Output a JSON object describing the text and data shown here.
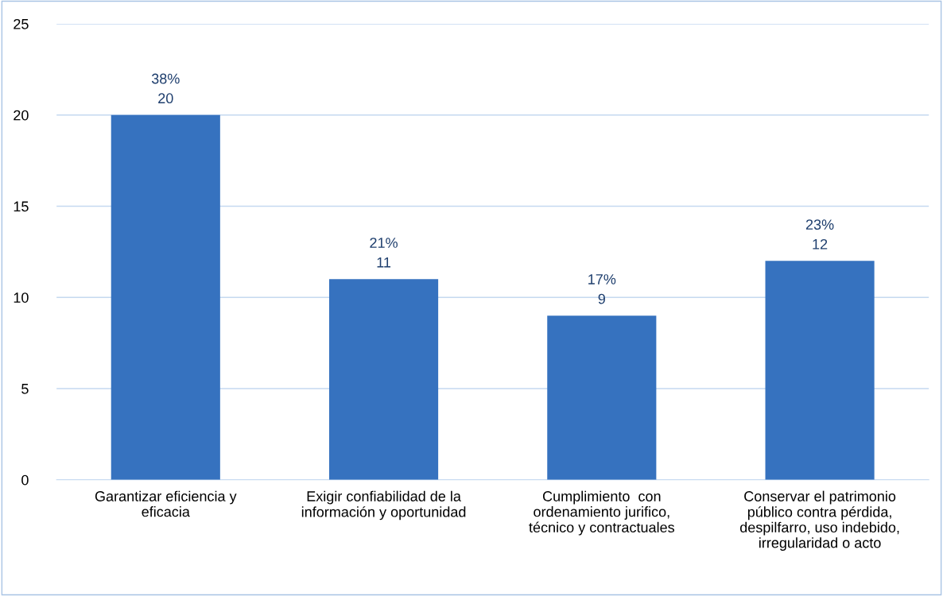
{
  "chart_data": {
    "type": "bar",
    "categories": [
      "Garantizar eficiencia y\neficacia",
      "Exigir confiabilidad de la\ninformación y oportunidad",
      "Cumplimiento  con\nordenamiento jurifico,\ntécnico y contractuales",
      "Conservar el patrimonio\npúblico contra pérdida,\ndespilfarro, uso indebido,\nirregularidad o acto"
    ],
    "values": [
      20,
      11,
      9,
      12
    ],
    "value_labels": [
      "38%\n20",
      "21%\n11",
      "17%\n9",
      "23%\n12"
    ],
    "color": "#3672bf",
    "ylim": [
      0,
      25
    ],
    "yticks": [
      0,
      5,
      10,
      15,
      20,
      25
    ],
    "grid": "y"
  }
}
